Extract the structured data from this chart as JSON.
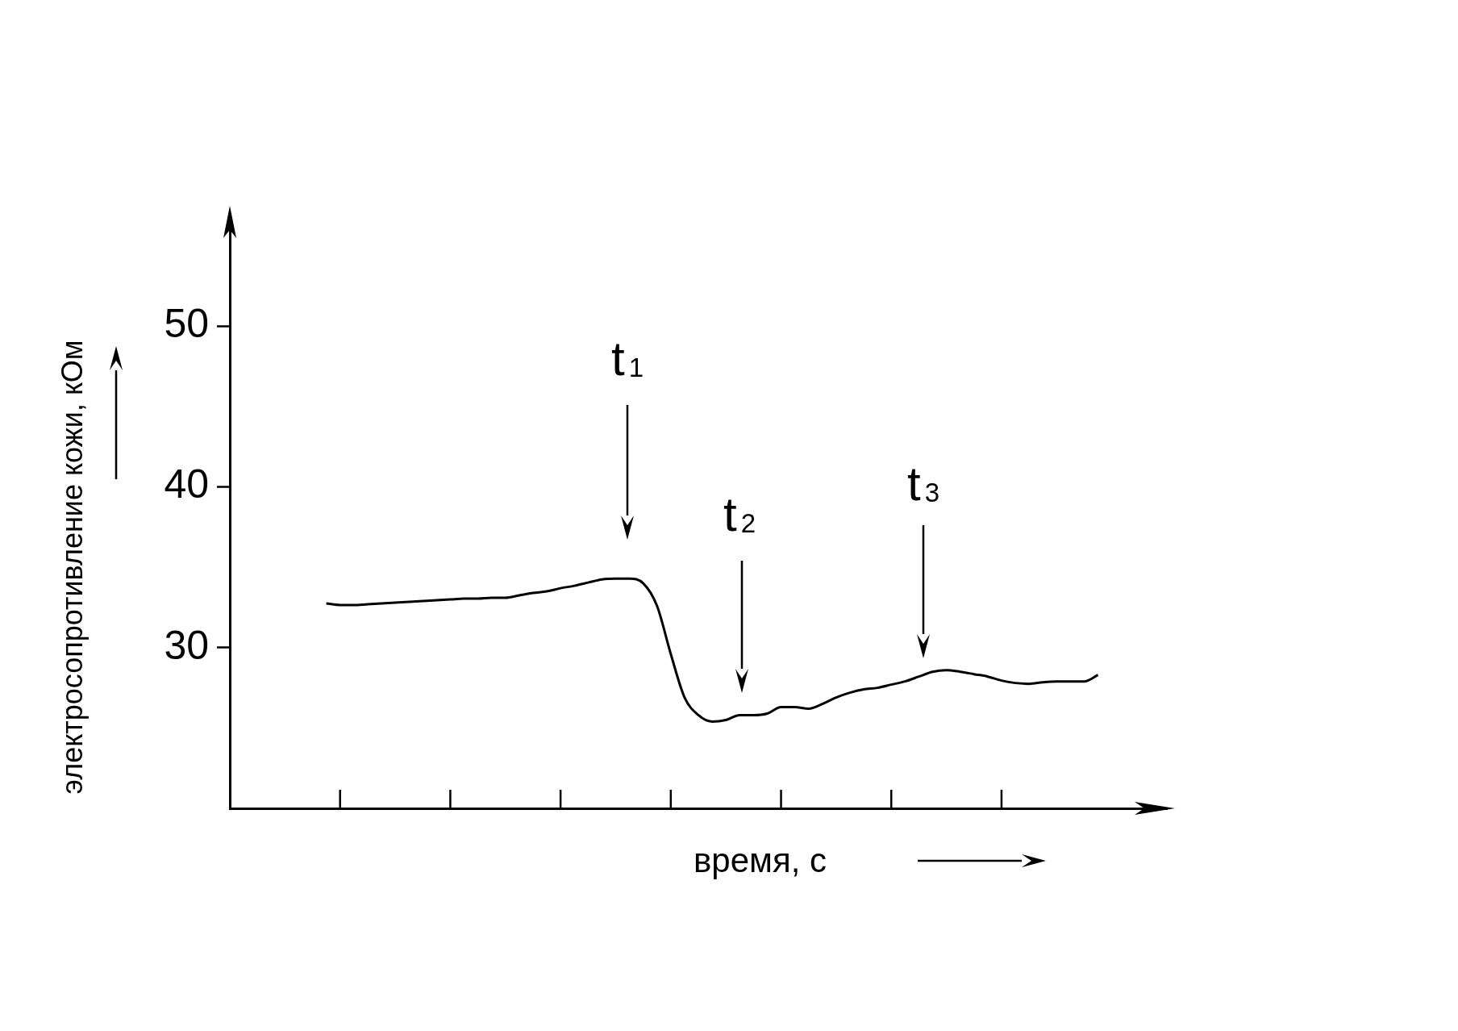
{
  "chart_data": {
    "type": "line",
    "ylabel": "электросопротивление кожи, кОм",
    "xlabel": "время, с",
    "categories": [
      null,
      null,
      null,
      null,
      null,
      null,
      null,
      null,
      null,
      null,
      null,
      null,
      null,
      null,
      null,
      null,
      null,
      null,
      null,
      null,
      null,
      null,
      null,
      null,
      null,
      null,
      null,
      null,
      null,
      null,
      null,
      null,
      null,
      null,
      null,
      null,
      null,
      null,
      null,
      null,
      null,
      null,
      null,
      null,
      null,
      null,
      null,
      null,
      null,
      null,
      null,
      null,
      null,
      null,
      null,
      null,
      null,
      null,
      null,
      null,
      null,
      null,
      null,
      null,
      null,
      null,
      null,
      null,
      null
    ],
    "series": [
      {
        "color": "#000000",
        "values": [
          null,
          null,
          null,
          null,
          null,
          null,
          null,
          32.75,
          32.65,
          32.65,
          32.7,
          32.75,
          32.8,
          32.85,
          32.9,
          32.95,
          33.0,
          33.05,
          33.05,
          33.1,
          33.1,
          33.25,
          33.4,
          33.5,
          33.7,
          33.85,
          34.05,
          34.25,
          34.3,
          34.3,
          34.0,
          32.6,
          29.6,
          26.9,
          25.8,
          25.4,
          25.5,
          25.8,
          25.8,
          25.9,
          26.3,
          26.3,
          26.2,
          26.5,
          26.9,
          27.2,
          27.4,
          27.5,
          27.7,
          27.9,
          28.2,
          28.5,
          28.6,
          28.5,
          28.35,
          28.2,
          27.95,
          27.8,
          27.75,
          27.85,
          27.9,
          27.9,
          27.9,
          28.3,
          null,
          null,
          null,
          null,
          null
        ]
      }
    ],
    "ylim": [
      20,
      57
    ],
    "yticks": [
      30,
      40,
      50
    ],
    "tick_labels": "y",
    "grid": false,
    "legend": false,
    "marker": "none",
    "line_style": "solid",
    "annotations": [
      "t$_{1}$",
      "t$_{2}$",
      "t$_{3}$"
    ]
  }
}
